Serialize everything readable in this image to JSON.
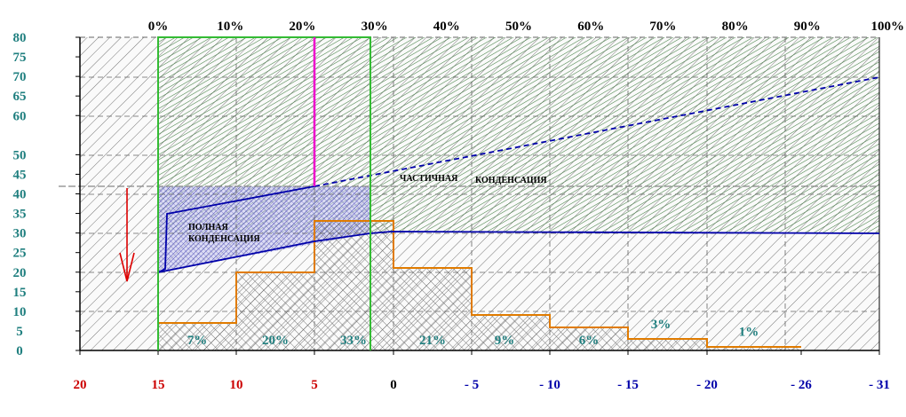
{
  "chart_data": {
    "type": "area",
    "title": "",
    "ylim": [
      0,
      80
    ],
    "y_ticks": [
      "0",
      "5",
      "10",
      "15",
      "20",
      "25",
      "30",
      "35",
      "40",
      "45",
      "50",
      "60",
      "65",
      "70",
      "75",
      "80"
    ],
    "top_ticks": [
      "0%",
      "10%",
      "20%",
      "30%",
      "40%",
      "50%",
      "60%",
      "70%",
      "80%",
      "90%",
      "100%"
    ],
    "bottom_ticks": [
      {
        "label": "20",
        "color": "#cc0000"
      },
      {
        "label": "15",
        "color": "#cc0000"
      },
      {
        "label": "10",
        "color": "#cc0000"
      },
      {
        "label": "5",
        "color": "#cc0000"
      },
      {
        "label": "0",
        "color": "#000000"
      },
      {
        "label": "- 5",
        "color": "#0000aa"
      },
      {
        "label": "- 10",
        "color": "#0000aa"
      },
      {
        "label": "- 15",
        "color": "#0000aa"
      },
      {
        "label": "- 20",
        "color": "#0000aa"
      },
      {
        "label": "- 26",
        "color": "#0000aa"
      },
      {
        "label": "- 31",
        "color": "#0000aa"
      }
    ],
    "histogram": {
      "labels": [
        "7%",
        "20%",
        "33%",
        "21%",
        "9%",
        "6%",
        "3%",
        "1%"
      ],
      "values": [
        7,
        20,
        33,
        21,
        9,
        6,
        3,
        1
      ]
    },
    "region_labels": {
      "full_condensation": [
        "ПОЛНАЯ",
        "КОНДЕНСАЦИЯ"
      ],
      "partial_condensation": [
        "ЧАСТИЧНАЯ",
        "КОНДЕНСАЦИЯ"
      ]
    },
    "colors": {
      "grid_hatch": "#666666",
      "green_hatch": "#3a7a3a",
      "blue_hatch": "#2a2aaa",
      "histogram_outline": "#e07b00",
      "condensation_line": "#0000aa",
      "magenta_line": "#ee00cc",
      "green_line": "#33bb33",
      "arrow": "#dd0000"
    }
  }
}
